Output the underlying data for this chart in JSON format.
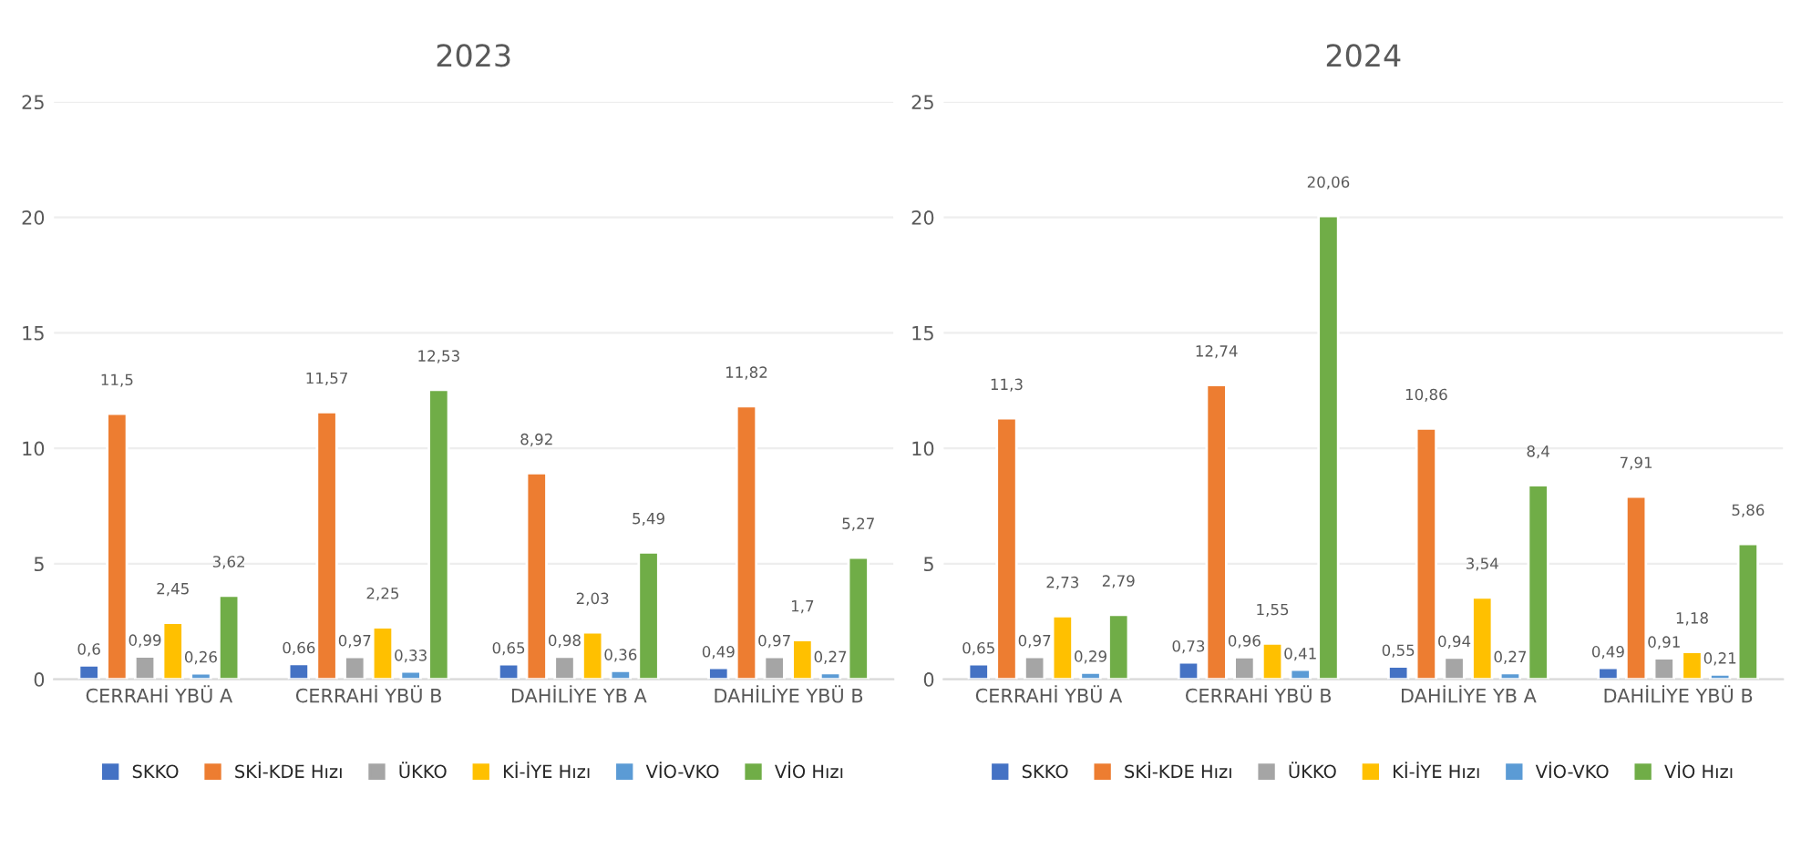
{
  "chart_data": [
    {
      "type": "bar",
      "title": "2023",
      "categories": [
        "CERRAHİ YBÜ A",
        "CERRAHİ YBÜ B",
        "DAHİLİYE YB A",
        "DAHİLİYE YBÜ B"
      ],
      "ylim": [
        0,
        25
      ],
      "yticks": [
        0,
        5,
        10,
        15,
        20,
        25
      ],
      "grid": "y",
      "legend": "bottom",
      "series": [
        {
          "name": "SKKO",
          "color": "#4472c4",
          "values": [
            0.6,
            0.66,
            0.65,
            0.49
          ],
          "value_labels": [
            "0,6",
            "0,66",
            "0,65",
            "0,49"
          ]
        },
        {
          "name": "SKİ-KDE Hızı",
          "color": "#ed7d31",
          "values": [
            11.5,
            11.57,
            8.92,
            11.82
          ],
          "value_labels": [
            "11,5",
            "11,57",
            "8,92",
            "11,82"
          ]
        },
        {
          "name": "ÜKKO",
          "color": "#a5a5a5",
          "values": [
            0.99,
            0.97,
            0.98,
            0.97
          ],
          "value_labels": [
            "0,99",
            "0,97",
            "0,98",
            "0,97"
          ]
        },
        {
          "name": "Kİ-İYE Hızı",
          "color": "#ffc000",
          "values": [
            2.45,
            2.25,
            2.03,
            1.7
          ],
          "value_labels": [
            "2,45",
            "2,25",
            "2,03",
            "1,7"
          ]
        },
        {
          "name": "VİO-VKO",
          "color": "#5b9bd5",
          "values": [
            0.26,
            0.33,
            0.36,
            0.27
          ],
          "value_labels": [
            "0,26",
            "0,33",
            "0,36",
            "0,27"
          ]
        },
        {
          "name": "VİO Hızı",
          "color": "#70ad47",
          "values": [
            3.62,
            12.53,
            5.49,
            5.27
          ],
          "value_labels": [
            "3,62",
            "12,53",
            "5,49",
            "5,27"
          ]
        }
      ]
    },
    {
      "type": "bar",
      "title": "2024",
      "categories": [
        "CERRAHİ YBÜ A",
        "CERRAHİ YBÜ B",
        "DAHİLİYE YB A",
        "DAHİLİYE YBÜ B"
      ],
      "ylim": [
        0,
        25
      ],
      "yticks": [
        0,
        5,
        10,
        15,
        20,
        25
      ],
      "grid": "y",
      "legend": "bottom",
      "series": [
        {
          "name": "SKKO",
          "color": "#4472c4",
          "values": [
            0.65,
            0.73,
            0.55,
            0.49
          ],
          "value_labels": [
            "0,65",
            "0,73",
            "0,55",
            "0,49"
          ]
        },
        {
          "name": "SKİ-KDE Hızı",
          "color": "#ed7d31",
          "values": [
            11.3,
            12.74,
            10.86,
            7.91
          ],
          "value_labels": [
            "11,3",
            "12,74",
            "10,86",
            "7,91"
          ]
        },
        {
          "name": "ÜKKO",
          "color": "#a5a5a5",
          "values": [
            0.97,
            0.96,
            0.94,
            0.91
          ],
          "value_labels": [
            "0,97",
            "0,96",
            "0,94",
            "0,91"
          ]
        },
        {
          "name": "Kİ-İYE Hızı",
          "color": "#ffc000",
          "values": [
            2.73,
            1.55,
            3.54,
            1.18
          ],
          "value_labels": [
            "2,73",
            "1,55",
            "3,54",
            "1,18"
          ]
        },
        {
          "name": "VİO-VKO",
          "color": "#5b9bd5",
          "values": [
            0.29,
            0.41,
            0.27,
            0.21
          ],
          "value_labels": [
            "0,29",
            "0,41",
            "0,27",
            "0,21"
          ]
        },
        {
          "name": "VİO Hızı",
          "color": "#70ad47",
          "values": [
            2.79,
            20.06,
            8.4,
            5.86
          ],
          "value_labels": [
            "2,79",
            "20,06",
            "8,4",
            "5,86"
          ]
        }
      ]
    }
  ]
}
